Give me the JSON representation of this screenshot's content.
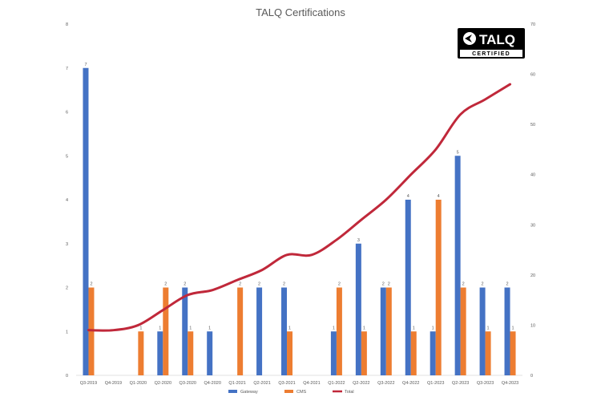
{
  "chart_data": {
    "type": "bar",
    "title": "TALQ Certifications",
    "categories": [
      "Q3-2019",
      "Q4-2019",
      "Q1-2020",
      "Q2-2020",
      "Q3-2020",
      "Q4-2020",
      "Q1-2021",
      "Q2-2021",
      "Q3-2021",
      "Q4-2021",
      "Q1-2022",
      "Q2-2022",
      "Q3-2022",
      "Q4-2022",
      "Q1-2023",
      "Q2-2023",
      "Q3-2023",
      "Q4-2023"
    ],
    "series": [
      {
        "name": "Gateway",
        "kind": "bar",
        "axis": "left",
        "color": "#4472C4",
        "values": [
          7,
          0,
          0,
          1,
          2,
          1,
          0,
          2,
          2,
          0,
          1,
          3,
          2,
          4,
          1,
          5,
          2,
          2
        ]
      },
      {
        "name": "CMS",
        "kind": "bar",
        "axis": "left",
        "color": "#ED7D31",
        "values": [
          2,
          0,
          1,
          2,
          1,
          0,
          2,
          0,
          1,
          0,
          2,
          1,
          2,
          1,
          4,
          2,
          1,
          1
        ]
      },
      {
        "name": "Total",
        "kind": "line",
        "axis": "right",
        "color": "#C0283A",
        "values": [
          9,
          9,
          10,
          13,
          16,
          17,
          19,
          21,
          24,
          24,
          27,
          31,
          35,
          40,
          45,
          52,
          55,
          58
        ]
      }
    ],
    "left_axis": {
      "min": 0,
      "max": 8,
      "step": 1
    },
    "right_axis": {
      "min": 0,
      "max": 70,
      "step": 10
    },
    "grid": false,
    "legend_position": "bottom",
    "data_labels": "bars (non-zero values)"
  },
  "logo": {
    "word": "TALQ",
    "badge": "CERTIFIED",
    "background": "#000000"
  }
}
